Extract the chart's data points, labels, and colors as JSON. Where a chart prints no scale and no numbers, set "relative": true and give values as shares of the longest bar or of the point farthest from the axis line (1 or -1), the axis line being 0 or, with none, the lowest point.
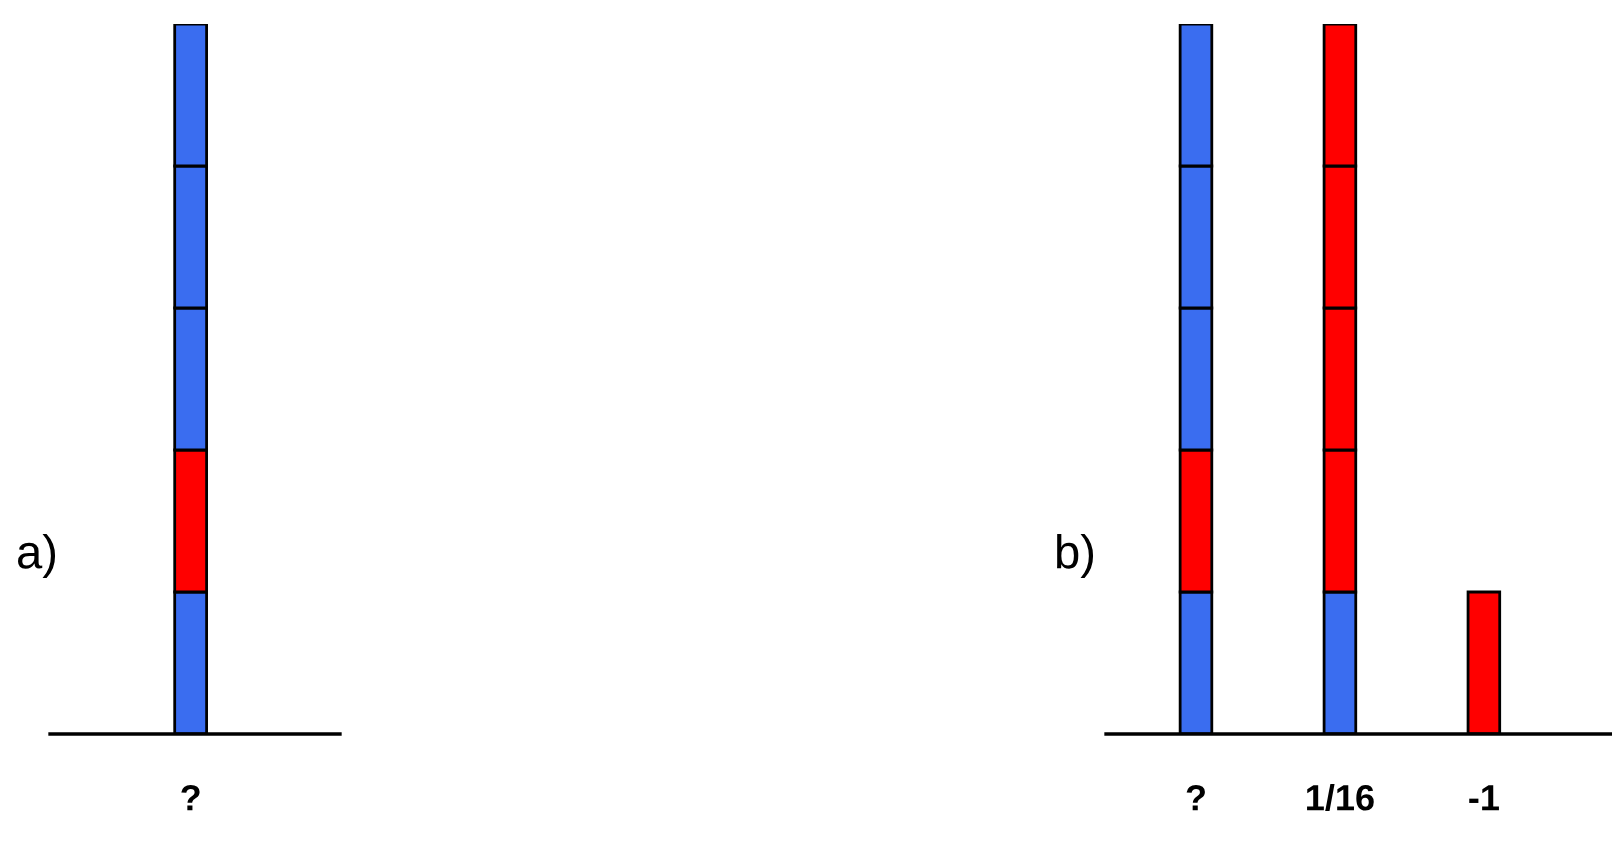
{
  "chart_data": [
    {
      "type": "bar",
      "stacked": true,
      "relative": true,
      "annotations": [
        "a)"
      ],
      "categories": [
        "?"
      ],
      "series": [
        {
          "colors": [
            "#3a6df0"
          ],
          "values": [
            0.2
          ]
        },
        {
          "colors": [
            "#ff0000"
          ],
          "values": [
            0.2
          ]
        },
        {
          "colors": [
            "#3a6df0"
          ],
          "values": [
            0.2
          ]
        },
        {
          "colors": [
            "#3a6df0"
          ],
          "values": [
            0.2
          ]
        },
        {
          "colors": [
            "#3a6df0"
          ],
          "values": [
            0.2
          ]
        }
      ]
    },
    {
      "type": "bar",
      "stacked": true,
      "relative": true,
      "annotations": [
        "b)"
      ],
      "categories": [
        "?",
        "1/16",
        "-1"
      ],
      "series": [
        {
          "colors": [
            "#3a6df0",
            "#3a6df0",
            "#ff0000"
          ],
          "values": [
            0.2,
            0.2,
            0.2
          ]
        },
        {
          "colors": [
            "#ff0000",
            "#ff0000",
            null
          ],
          "values": [
            0.2,
            0.2,
            null
          ]
        },
        {
          "colors": [
            "#3a6df0",
            "#ff0000",
            null
          ],
          "values": [
            0.2,
            0.2,
            null
          ]
        },
        {
          "colors": [
            "#3a6df0",
            "#ff0000",
            null
          ],
          "values": [
            0.2,
            0.2,
            null
          ]
        },
        {
          "colors": [
            "#3a6df0",
            "#ff0000",
            null
          ],
          "values": [
            0.2,
            0.2,
            null
          ]
        }
      ]
    }
  ]
}
